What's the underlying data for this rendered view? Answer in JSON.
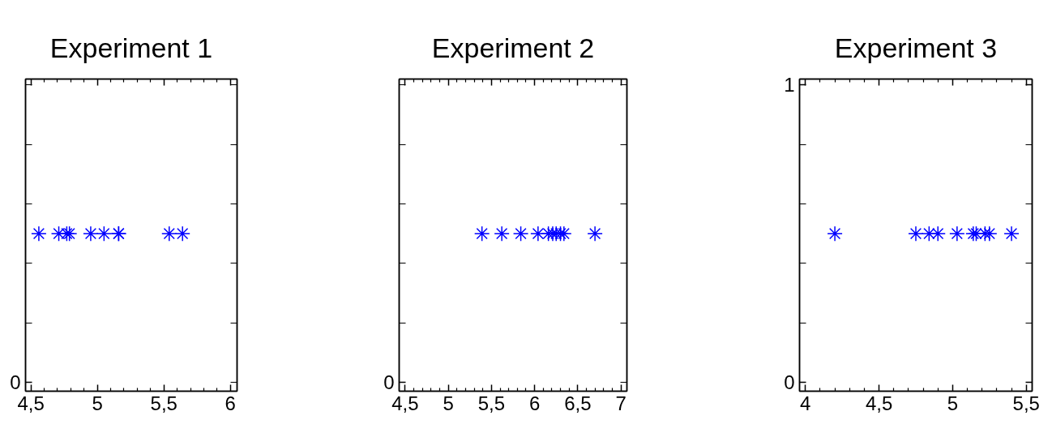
{
  "chart_data": [
    {
      "type": "scatter",
      "title": "Experiment 1",
      "marker": "cross",
      "tick_labels": "x",
      "annotations": [
        "0"
      ],
      "series": [
        {
          "color": "#0000ff",
          "x": [
            4.56,
            4.71,
            4.77,
            4.79,
            4.95,
            5.05,
            5.16,
            5.16,
            5.54,
            5.64
          ],
          "values": [
            0.5,
            0.5,
            0.5,
            0.5,
            0.5,
            0.5,
            0.5,
            0.5,
            0.5,
            0.5
          ]
        }
      ],
      "xlim": [
        4.46,
        6.05
      ],
      "xticks": [
        {
          "value": 4.5,
          "label": "4,5"
        },
        {
          "value": 4.6,
          "label": null
        },
        {
          "value": 4.7,
          "label": null
        },
        {
          "value": 4.8,
          "label": null
        },
        {
          "value": 4.9,
          "label": null
        },
        5,
        {
          "value": 5.1,
          "label": null
        },
        {
          "value": 5.2,
          "label": null
        },
        {
          "value": 5.3,
          "label": null
        },
        {
          "value": 5.4,
          "label": null
        },
        {
          "value": 5.5,
          "label": "5,5"
        },
        {
          "value": 5.6,
          "label": null
        },
        {
          "value": 5.7,
          "label": null
        },
        {
          "value": 5.8,
          "label": null
        },
        {
          "value": 5.9,
          "label": null
        },
        6
      ],
      "ylim": [
        -0.03,
        1.02
      ],
      "yticks": [
        {
          "value": 0,
          "label": null
        },
        {
          "value": 0.2,
          "label": null
        },
        {
          "value": 0.4,
          "label": null
        },
        {
          "value": 0.6,
          "label": null
        },
        {
          "value": 0.8,
          "label": null
        },
        {
          "value": 1,
          "label": null
        }
      ]
    },
    {
      "type": "scatter",
      "title": "Experiment 2",
      "marker": "cross",
      "tick_labels": "x",
      "annotations": [
        "0"
      ],
      "series": [
        {
          "color": "#0000ff",
          "x": [
            5.39,
            5.62,
            5.84,
            6.04,
            6.16,
            6.21,
            6.25,
            6.3,
            6.34,
            6.7
          ],
          "values": [
            0.5,
            0.5,
            0.5,
            0.5,
            0.5,
            0.5,
            0.5,
            0.5,
            0.5,
            0.5
          ]
        }
      ],
      "xlim": [
        4.43,
        7.07
      ],
      "xticks": [
        {
          "value": 4.5,
          "label": "4,5"
        },
        {
          "value": 4.6,
          "label": null
        },
        {
          "value": 4.7,
          "label": null
        },
        {
          "value": 4.8,
          "label": null
        },
        {
          "value": 4.9,
          "label": null
        },
        5,
        {
          "value": 5.1,
          "label": null
        },
        {
          "value": 5.2,
          "label": null
        },
        {
          "value": 5.3,
          "label": null
        },
        {
          "value": 5.4,
          "label": null
        },
        {
          "value": 5.5,
          "label": "5,5"
        },
        {
          "value": 5.6,
          "label": null
        },
        {
          "value": 5.7,
          "label": null
        },
        {
          "value": 5.8,
          "label": null
        },
        {
          "value": 5.9,
          "label": null
        },
        6,
        {
          "value": 6.1,
          "label": null
        },
        {
          "value": 6.2,
          "label": null
        },
        {
          "value": 6.3,
          "label": null
        },
        {
          "value": 6.4,
          "label": null
        },
        {
          "value": 6.5,
          "label": "6,5"
        },
        {
          "value": 6.6,
          "label": null
        },
        {
          "value": 6.7,
          "label": null
        },
        {
          "value": 6.8,
          "label": null
        },
        {
          "value": 6.9,
          "label": null
        },
        7
      ],
      "ylim": [
        -0.03,
        1.02
      ],
      "yticks": [
        {
          "value": 0,
          "label": null
        },
        {
          "value": 0.2,
          "label": null
        },
        {
          "value": 0.4,
          "label": null
        },
        {
          "value": 0.6,
          "label": null
        },
        {
          "value": 0.8,
          "label": null
        },
        {
          "value": 1,
          "label": null
        }
      ]
    },
    {
      "type": "scatter",
      "title": "Experiment 3",
      "marker": "cross",
      "series": [
        {
          "color": "#0000ff",
          "x": [
            4.2,
            4.75,
            4.84,
            4.9,
            5.03,
            5.14,
            5.16,
            5.22,
            5.25,
            5.4
          ],
          "values": [
            0.5,
            0.5,
            0.5,
            0.5,
            0.5,
            0.5,
            0.5,
            0.5,
            0.5,
            0.5
          ]
        }
      ],
      "xlim": [
        3.96,
        5.54
      ],
      "xticks": [
        4,
        {
          "value": 4.1,
          "label": null
        },
        {
          "value": 4.2,
          "label": null
        },
        {
          "value": 4.3,
          "label": null
        },
        {
          "value": 4.4,
          "label": null
        },
        {
          "value": 4.5,
          "label": "4,5"
        },
        {
          "value": 4.6,
          "label": null
        },
        {
          "value": 4.7,
          "label": null
        },
        {
          "value": 4.8,
          "label": null
        },
        {
          "value": 4.9,
          "label": null
        },
        5,
        {
          "value": 5.1,
          "label": null
        },
        {
          "value": 5.2,
          "label": null
        },
        {
          "value": 5.3,
          "label": null
        },
        {
          "value": 5.4,
          "label": null
        },
        {
          "value": 5.5,
          "label": "5,5"
        }
      ],
      "ylim": [
        -0.03,
        1.02
      ],
      "yticks": [
        0,
        {
          "value": 0.2,
          "label": null
        },
        {
          "value": 0.4,
          "label": null
        },
        {
          "value": 0.6,
          "label": null
        },
        {
          "value": 0.8,
          "label": null
        },
        1
      ]
    }
  ]
}
